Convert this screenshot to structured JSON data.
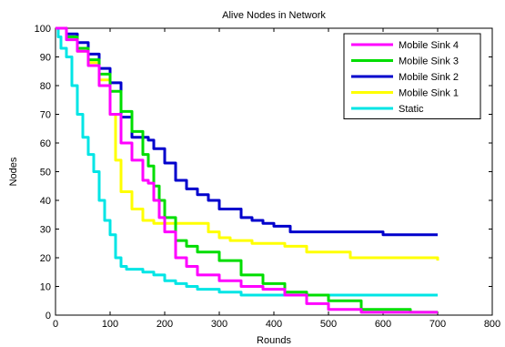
{
  "chart_data": {
    "type": "line",
    "title": "Alive Nodes in Network",
    "xlabel": "Rounds",
    "ylabel": "Nodes",
    "xlim": [
      0,
      800
    ],
    "ylim": [
      0,
      100
    ],
    "xticks": [
      "0",
      "100",
      "200",
      "300",
      "400",
      "500",
      "600",
      "700",
      "800"
    ],
    "yticks": [
      "0",
      "10",
      "20",
      "30",
      "40",
      "50",
      "60",
      "70",
      "80",
      "90",
      "100"
    ],
    "grid": false,
    "legend_position": "top-right",
    "series": [
      {
        "name": "Mobile Sink 4",
        "color": "#ff00ff",
        "x": [
          0,
          20,
          40,
          60,
          80,
          100,
          120,
          140,
          160,
          170,
          180,
          190,
          200,
          220,
          240,
          260,
          300,
          340,
          380,
          420,
          460,
          500,
          560,
          620,
          680,
          700
        ],
        "y": [
          100,
          96,
          92,
          87,
          80,
          70,
          60,
          54,
          47,
          46,
          40,
          34,
          29,
          20,
          17,
          14,
          12,
          10,
          9,
          7,
          4,
          2,
          1,
          1,
          1,
          1
        ]
      },
      {
        "name": "Mobile Sink 3",
        "color": "#00dd00",
        "x": [
          0,
          20,
          40,
          60,
          80,
          100,
          120,
          140,
          160,
          170,
          180,
          190,
          200,
          220,
          240,
          260,
          280,
          300,
          340,
          380,
          420,
          460,
          500,
          560,
          600,
          650,
          700
        ],
        "y": [
          100,
          97,
          93,
          89,
          84,
          78,
          71,
          64,
          56,
          52,
          45,
          40,
          34,
          26,
          24,
          22,
          22,
          19,
          14,
          11,
          8,
          7,
          5,
          2,
          2,
          1,
          1
        ]
      },
      {
        "name": "Mobile Sink 2",
        "color": "#0000cc",
        "x": [
          0,
          20,
          40,
          60,
          80,
          100,
          120,
          140,
          160,
          170,
          180,
          200,
          220,
          240,
          260,
          280,
          300,
          320,
          340,
          360,
          380,
          400,
          430,
          460,
          500,
          580,
          600,
          650,
          700
        ],
        "y": [
          100,
          98,
          95,
          91,
          86,
          81,
          69,
          62,
          62,
          61,
          58,
          53,
          47,
          44,
          42,
          40,
          37,
          37,
          34,
          33,
          32,
          31,
          29,
          29,
          29,
          29,
          28,
          28,
          28
        ]
      },
      {
        "name": "Mobile Sink 1",
        "color": "#ffff00",
        "x": [
          0,
          20,
          40,
          60,
          80,
          100,
          110,
          120,
          140,
          160,
          180,
          200,
          240,
          280,
          300,
          320,
          360,
          420,
          460,
          500,
          540,
          600,
          650,
          700
        ],
        "y": [
          100,
          97,
          92,
          88,
          82,
          70,
          54,
          43,
          37,
          33,
          32,
          32,
          32,
          29,
          27,
          26,
          25,
          24,
          22,
          22,
          20,
          20,
          20,
          19
        ]
      },
      {
        "name": "Static",
        "color": "#00e5e5",
        "x": [
          0,
          5,
          10,
          20,
          30,
          40,
          50,
          60,
          70,
          80,
          90,
          100,
          110,
          120,
          130,
          140,
          160,
          180,
          200,
          220,
          240,
          260,
          280,
          300,
          340,
          400,
          460,
          500,
          600,
          700
        ],
        "y": [
          100,
          97,
          93,
          90,
          80,
          70,
          62,
          56,
          50,
          40,
          33,
          28,
          20,
          17,
          16,
          16,
          15,
          14,
          12,
          11,
          10,
          9,
          9,
          8,
          7,
          7,
          7,
          7,
          7,
          7
        ]
      }
    ]
  }
}
